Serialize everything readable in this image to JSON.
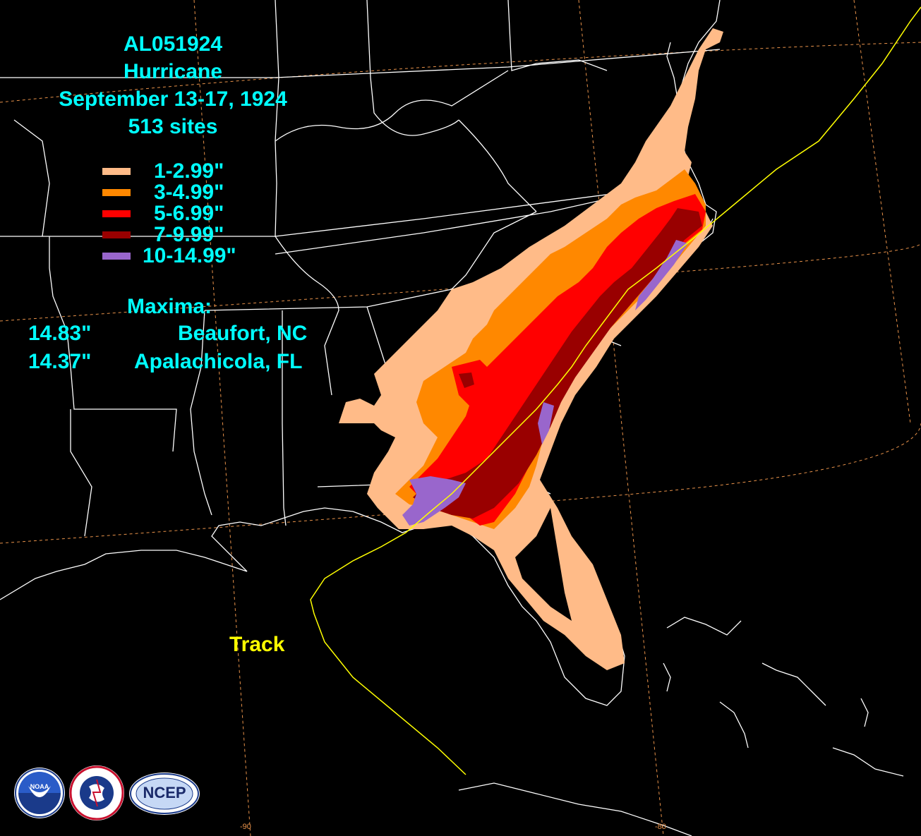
{
  "title": {
    "storm_id": "AL051924",
    "storm_type": "Hurricane",
    "dates": "September 13-17, 1924",
    "sites": "513 sites"
  },
  "legend": [
    {
      "label": "1-2.99\"",
      "color": "#ffbb88"
    },
    {
      "label": "3-4.99\"",
      "color": "#ff8800"
    },
    {
      "label": "5-6.99\"",
      "color": "#ff0000"
    },
    {
      "label": "7-9.99\"",
      "color": "#990000"
    },
    {
      "label": "10-14.99\"",
      "color": "#9966cc"
    }
  ],
  "maxima": {
    "heading": "Maxima:",
    "rows": [
      {
        "value": "14.83\"",
        "location": "Beaufort, NC"
      },
      {
        "value": "14.37\"",
        "location": "Apalachicola, FL"
      }
    ]
  },
  "track": {
    "label": "Track",
    "color": "#ffff00"
  },
  "longitude_labels": [
    "-90",
    "-80"
  ],
  "logos": {
    "noaa": "NOAA",
    "nws": "NATIONAL WEATHER SERVICE",
    "ncep": "NCEP"
  },
  "colors": {
    "background": "#000000",
    "text": "#00ffff",
    "boundaries": "#ffffff",
    "graticule": "#e8924a"
  }
}
